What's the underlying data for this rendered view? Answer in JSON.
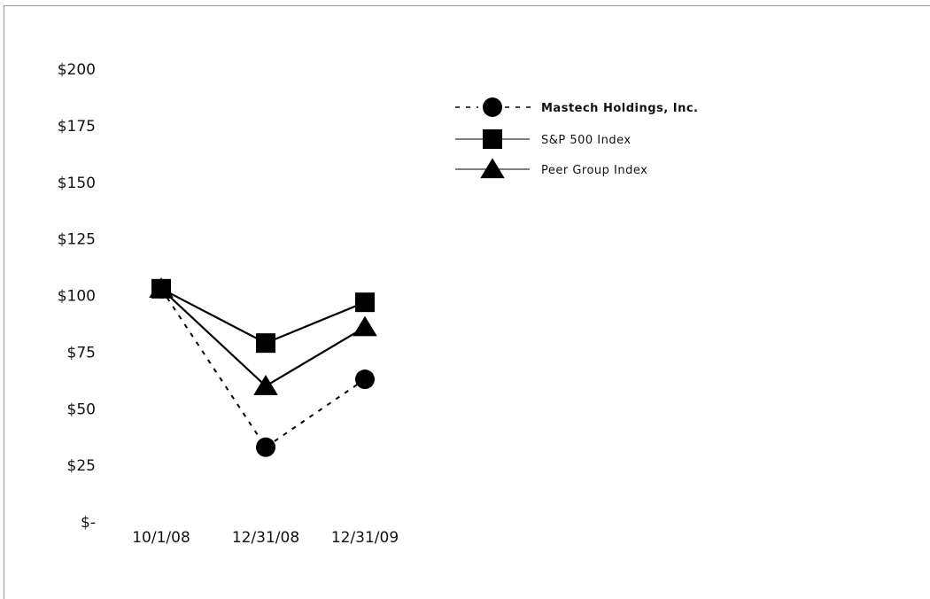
{
  "chart_data": {
    "type": "line",
    "categories": [
      "10/1/08",
      "12/31/08",
      "12/31/09"
    ],
    "y_tick_labels": [
      "$-",
      "$25",
      "$50",
      "$75",
      "$100",
      "$125",
      "$150",
      "$175",
      "$200"
    ],
    "ylim": [
      0,
      200
    ],
    "ytick_step": 25,
    "grid": false,
    "legend_position": "top-right",
    "series": [
      {
        "name": "Mastech Holdings, Inc.",
        "marker": "circle",
        "line_style": "dashed",
        "values": [
          103,
          33,
          63
        ],
        "color": "#000000"
      },
      {
        "name": "S&P 500 Index",
        "marker": "square",
        "line_style": "solid",
        "values": [
          103,
          79,
          97
        ],
        "color": "#000000"
      },
      {
        "name": "Peer Group Index",
        "marker": "triangle",
        "line_style": "solid",
        "values": [
          103,
          60,
          86
        ],
        "color": "#000000"
      }
    ]
  }
}
